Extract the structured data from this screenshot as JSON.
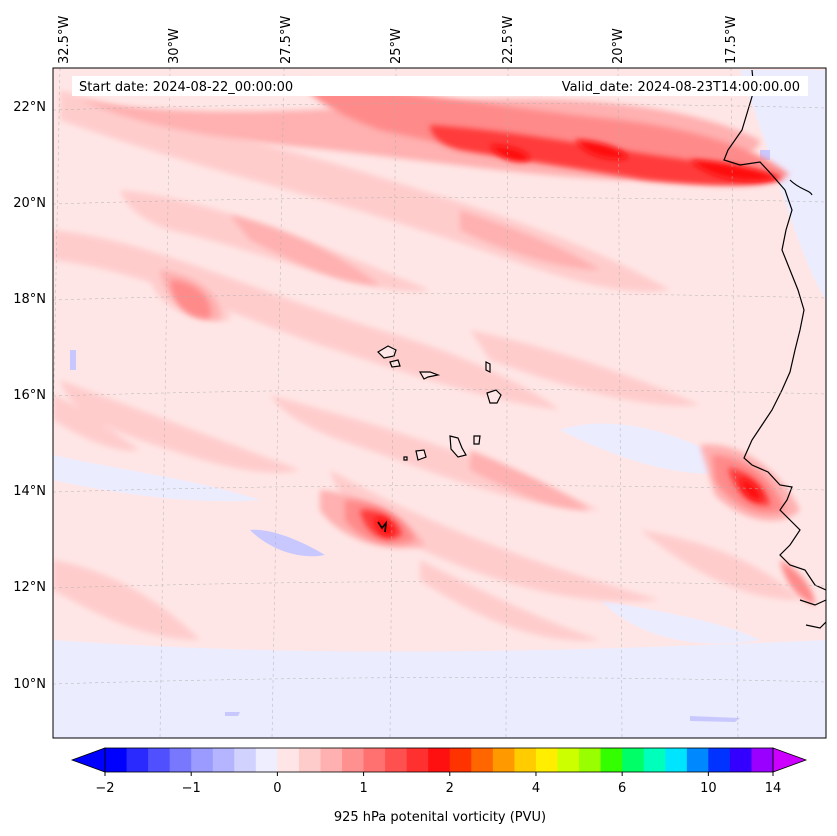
{
  "header": {
    "start_date": "Start date: 2024-08-22_00:00:00",
    "valid_date": "Valid_date: 2024-08-23T14:00:00.00"
  },
  "longitude_labels": [
    "32.5°W",
    "30°W",
    "27.5°W",
    "25°W",
    "22.5°W",
    "20°W",
    "17.5°W"
  ],
  "latitude_labels": [
    "22°N",
    "20°N",
    "18°N",
    "16°N",
    "14°N",
    "12°N",
    "10°N"
  ],
  "colorbar": {
    "label": "925 hPa potenital vorticity (PVU)",
    "ticks": [
      "−2",
      "−1",
      "0",
      "1",
      "2",
      "4",
      "6",
      "10",
      "14"
    ],
    "colors": [
      "#0000ff",
      "#2a2aff",
      "#5050ff",
      "#7878ff",
      "#9a9aff",
      "#b4b4ff",
      "#d2d2ff",
      "#eeeeff",
      "#ffe5e5",
      "#ffcccc",
      "#ffb0b0",
      "#ff9090",
      "#ff7070",
      "#ff5050",
      "#ff3030",
      "#ff1010",
      "#ff3300",
      "#ff6600",
      "#ff9900",
      "#ffcc00",
      "#ffee00",
      "#ccff00",
      "#99ff00",
      "#33ff00",
      "#00ff66",
      "#00ffbb",
      "#00e5ff",
      "#0088ff",
      "#0033ff",
      "#3300ff",
      "#9900ff"
    ],
    "extend_low": "#0000ff",
    "extend_high": "#cc00ff"
  },
  "field_colors": {
    "background": "#ffe6e6",
    "light_pink": "#ffcccc",
    "pink": "#ffb0b0",
    "salmon": "#ff9090",
    "coral": "#ff6060",
    "red": "#ff2a2a",
    "deep_red": "#ff0a0a",
    "light_blue": "#e8e8ff",
    "blue": "#c8c8ff"
  }
}
